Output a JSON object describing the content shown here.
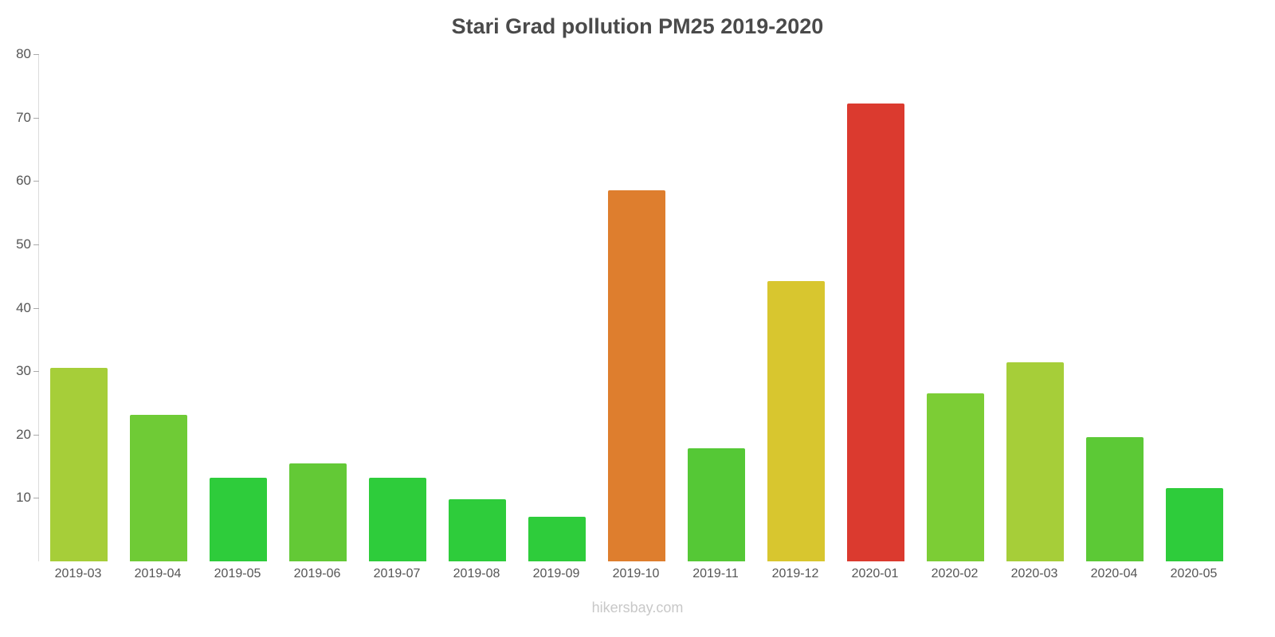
{
  "chart_data": {
    "type": "bar",
    "title": "Stari Grad pollution PM25 2019-2020",
    "categories": [
      "2019-03",
      "2019-04",
      "2019-05",
      "2019-06",
      "2019-07",
      "2019-08",
      "2019-09",
      "2019-10",
      "2019-11",
      "2019-12",
      "2020-01",
      "2020-02",
      "2020-03",
      "2020-04",
      "2020-05"
    ],
    "values": [
      30.5,
      23.1,
      13.2,
      15.4,
      13.2,
      9.8,
      7.0,
      58.5,
      17.8,
      44.2,
      72.2,
      26.5,
      31.4,
      19.6,
      11.5
    ],
    "bar_colors": [
      "#A6CE39",
      "#6FCB36",
      "#2ECC3B",
      "#63C936",
      "#2ECC3B",
      "#2ECC3B",
      "#2ECC3B",
      "#DE7E2E",
      "#55C836",
      "#D8C62F",
      "#DB3A2F",
      "#7CCD35",
      "#A6CE39",
      "#5CC936",
      "#2ECC3B"
    ],
    "xlabel": "",
    "ylabel": "",
    "ylim": [
      0,
      80
    ],
    "yticks": [
      10,
      20,
      30,
      40,
      50,
      60,
      70,
      80
    ],
    "grid": false,
    "legend": false
  },
  "footer": "hikersbay.com"
}
